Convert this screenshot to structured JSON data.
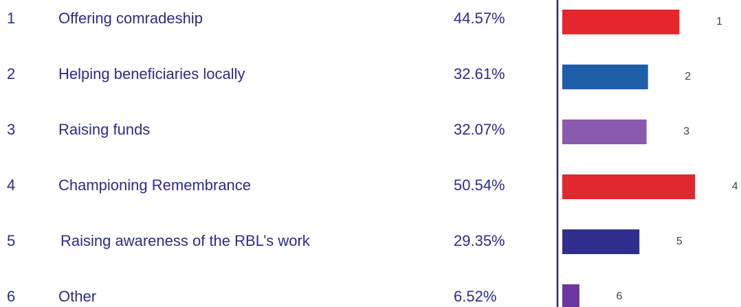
{
  "chart_data": {
    "type": "bar",
    "orientation": "horizontal",
    "ranks": [
      "1",
      "2",
      "3",
      "4",
      "5",
      "6"
    ],
    "categories": [
      "Offering comradeship",
      "Helping beneficiaries locally",
      "Raising funds",
      "Championing Remembrance",
      "Raising awareness of the RBL’s work",
      "Other"
    ],
    "values": [
      44.57,
      32.61,
      32.07,
      50.54,
      29.35,
      6.52
    ],
    "value_labels": [
      "44.57%",
      "32.61%",
      "32.07%",
      "50.54%",
      "29.35%",
      "6.52%"
    ],
    "colors": [
      "#e5262c",
      "#1f5ea8",
      "#8a5aae",
      "#e0272d",
      "#2f2e8e",
      "#6b36a2"
    ],
    "xlim": [
      0,
      68
    ]
  }
}
